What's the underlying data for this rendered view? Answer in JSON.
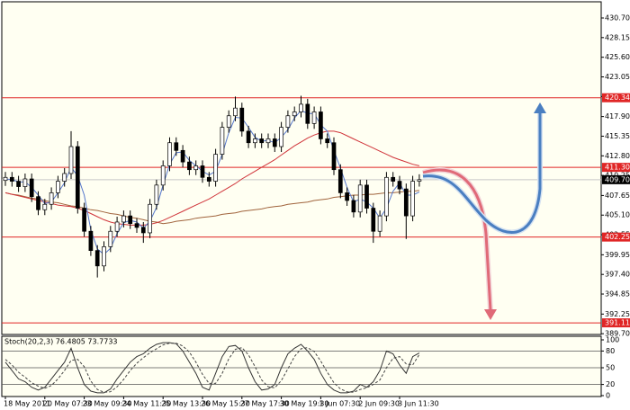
{
  "chart_data": [
    {
      "type": "candlestick",
      "categories": [
        "18 May 2011",
        null,
        null,
        null,
        null,
        null,
        "20 May 07:30",
        null,
        null,
        null,
        null,
        null,
        "23 May 09:30",
        null,
        null,
        null,
        null,
        null,
        "24 May 11:30",
        null,
        null,
        null,
        null,
        null,
        "25 May 13:30",
        null,
        null,
        null,
        null,
        null,
        "26 May 15:30",
        null,
        null,
        null,
        null,
        null,
        "27 May 17:30",
        null,
        null,
        null,
        null,
        null,
        "30 May 19:30",
        null,
        null,
        null,
        null,
        null,
        "1 Jun 07:30",
        null,
        null,
        null,
        null,
        null,
        "2 Jun 09:30",
        null,
        null,
        null,
        null,
        null,
        "3 Jun 11:30",
        null,
        null,
        null
      ],
      "open": [
        409.6,
        410.0,
        409.5,
        408.8,
        409.8,
        407.5,
        405.8,
        406.5,
        408.0,
        409.5,
        410.5,
        414.0,
        406.0,
        403.0,
        400.5,
        398.5,
        401.0,
        403.0,
        404.2,
        405.0,
        404.0,
        403.5,
        402.8,
        406.5,
        409.0,
        411.5,
        414.5,
        413.5,
        412.0,
        411.0,
        411.5,
        410.0,
        409.5,
        413.0,
        416.5,
        418.0,
        419.0,
        416.0,
        414.5,
        415.0,
        414.5,
        415.0,
        414.0,
        416.5,
        418.0,
        418.5,
        419.5,
        417.0,
        418.5,
        415.0,
        414.5,
        411.0,
        408.0,
        407.0,
        405.5,
        409.0,
        406.0,
        403.0,
        405.0,
        410.0,
        409.5,
        408.5,
        405.0,
        409.5
      ],
      "high": [
        410.7,
        410.7,
        410.2,
        410.5,
        410.5,
        408.2,
        407.2,
        408.7,
        410.2,
        411.2,
        416.0,
        414.7,
        406.7,
        403.7,
        401.2,
        401.7,
        403.7,
        404.9,
        405.7,
        405.7,
        404.7,
        404.2,
        407.2,
        409.7,
        412.2,
        415.2,
        415.2,
        414.2,
        412.7,
        412.2,
        412.2,
        410.7,
        413.7,
        417.2,
        418.7,
        420.5,
        419.7,
        416.7,
        415.7,
        415.7,
        415.7,
        415.7,
        417.2,
        418.7,
        419.2,
        420.6,
        420.2,
        419.2,
        419.2,
        415.7,
        415.2,
        411.7,
        408.7,
        407.7,
        409.7,
        409.7,
        406.7,
        405.7,
        410.7,
        410.7,
        410.2,
        409.2,
        410.2,
        410.4
      ],
      "low": [
        408.9,
        408.8,
        408.1,
        408.1,
        406.8,
        405.1,
        405.1,
        405.8,
        407.3,
        408.8,
        409.8,
        405.3,
        402.3,
        399.8,
        397.0,
        397.8,
        400.3,
        402.3,
        403.5,
        403.3,
        402.8,
        401.5,
        402.1,
        405.8,
        408.3,
        410.8,
        412.8,
        411.3,
        410.3,
        410.3,
        409.3,
        408.8,
        408.8,
        412.3,
        415.8,
        417.3,
        415.3,
        413.8,
        413.8,
        413.8,
        413.8,
        413.3,
        413.3,
        415.8,
        417.3,
        417.8,
        416.3,
        416.3,
        414.3,
        413.8,
        410.3,
        407.3,
        406.3,
        404.8,
        404.8,
        405.3,
        401.5,
        402.3,
        404.3,
        408.8,
        407.8,
        402.0,
        404.3,
        408.8
      ],
      "close": [
        410.0,
        409.5,
        408.8,
        409.8,
        407.5,
        405.8,
        406.5,
        408.0,
        409.5,
        410.5,
        414.0,
        406.0,
        403.0,
        400.5,
        398.5,
        401.0,
        403.0,
        404.2,
        405.0,
        404.0,
        403.5,
        402.8,
        406.5,
        409.0,
        411.5,
        414.5,
        413.5,
        412.0,
        411.0,
        411.5,
        410.0,
        409.5,
        413.0,
        416.5,
        418.0,
        419.0,
        416.0,
        414.5,
        415.0,
        414.5,
        415.0,
        414.0,
        416.5,
        418.0,
        418.5,
        419.5,
        417.0,
        418.5,
        415.0,
        414.5,
        411.0,
        408.0,
        407.0,
        405.5,
        409.0,
        406.0,
        403.0,
        405.0,
        410.0,
        409.5,
        408.5,
        405.0,
        409.5,
        409.7
      ],
      "up_color": "#ffffff",
      "down_color": "#000000",
      "series": [
        {
          "color": "#a0633c",
          "values": [
            408.0,
            407.8,
            407.7,
            407.5,
            407.3,
            407.2,
            407.0,
            406.8,
            406.7,
            406.5,
            406.3,
            406.2,
            406.0,
            405.8,
            405.7,
            405.5,
            405.3,
            405.2,
            405.0,
            404.8,
            404.7,
            404.5,
            404.3,
            404.2,
            404.0,
            404.1,
            404.3,
            404.4,
            404.5,
            404.7,
            404.8,
            404.9,
            405.0,
            405.2,
            405.3,
            405.4,
            405.6,
            405.7,
            405.8,
            405.9,
            406.1,
            406.2,
            406.3,
            406.5,
            406.6,
            406.7,
            406.8,
            407.0,
            407.1,
            407.2,
            407.4,
            407.5,
            407.6,
            407.7,
            407.7,
            407.8,
            407.8,
            407.9,
            408.0,
            408.0,
            408.1,
            408.2,
            408.2,
            408.3
          ]
        },
        {
          "color": "#d0343a",
          "values": [
            408.0,
            407.8,
            407.6,
            407.4,
            407.2,
            407.0,
            406.8,
            406.6,
            406.4,
            406.3,
            406.2,
            406.0,
            405.7,
            405.3,
            404.9,
            404.5,
            404.2,
            404.0,
            403.9,
            403.8,
            403.8,
            403.8,
            403.9,
            404.1,
            404.4,
            404.8,
            405.2,
            405.6,
            406.0,
            406.4,
            406.8,
            407.2,
            407.7,
            408.2,
            408.7,
            409.2,
            409.8,
            410.3,
            410.8,
            411.3,
            411.8,
            412.3,
            412.9,
            413.5,
            414.1,
            414.6,
            415.1,
            415.5,
            415.8,
            416.0,
            416.0,
            415.8,
            415.4,
            415.0,
            414.6,
            414.2,
            413.8,
            413.4,
            413.0,
            412.6,
            412.3,
            412.0,
            411.7,
            411.5
          ]
        },
        {
          "color": "#5577cc",
          "values": [
            409.8,
            409.7,
            409.4,
            409.4,
            408.7,
            407.7,
            406.6,
            406.8,
            408.0,
            409.3,
            411.3,
            410.2,
            407.7,
            403.2,
            400.7,
            400.0,
            400.8,
            402.7,
            404.1,
            404.4,
            404.2,
            403.4,
            404.3,
            406.1,
            409.0,
            411.7,
            413.2,
            413.3,
            412.2,
            411.5,
            410.8,
            410.3,
            410.8,
            413.0,
            415.8,
            417.8,
            417.7,
            416.5,
            415.2,
            414.7,
            414.8,
            414.5,
            415.2,
            416.2,
            417.7,
            418.7,
            418.3,
            418.3,
            416.8,
            416.0,
            413.5,
            411.2,
            408.7,
            406.8,
            407.2,
            406.8,
            406.0,
            404.7,
            406.0,
            408.2,
            409.3,
            407.7,
            407.7,
            408.1
          ]
        }
      ],
      "ylim": [
        389.6,
        432.8
      ],
      "yticks": [
        {
          "value": 430.7,
          "label": "430.70"
        },
        {
          "value": 428.15,
          "label": "428.15"
        },
        {
          "value": 425.6,
          "label": "425.60"
        },
        {
          "value": 423.05,
          "label": "423.05"
        },
        {
          "value": 420.5,
          "label": "420.50"
        },
        {
          "value": 417.9,
          "label": "417.90"
        },
        {
          "value": 415.35,
          "label": "415.35"
        },
        {
          "value": 412.8,
          "label": "412.80"
        },
        {
          "value": 410.25,
          "label": "410.25"
        },
        {
          "value": 407.65,
          "label": "407.65"
        },
        {
          "value": 405.1,
          "label": "405.10"
        },
        {
          "value": 402.55,
          "label": "402.55"
        },
        {
          "value": 399.95,
          "label": "399.95"
        },
        {
          "value": 397.4,
          "label": "397.40"
        },
        {
          "value": 394.85,
          "label": "394.85"
        },
        {
          "value": 392.25,
          "label": "392.25"
        },
        {
          "value": 389.7,
          "label": "389.70"
        }
      ],
      "levels": [
        {
          "value": 420.34,
          "label": "420.34"
        },
        {
          "value": 411.3,
          "label": "411.30"
        },
        {
          "value": 402.25,
          "label": "402.25"
        },
        {
          "value": 391.11,
          "label": "391.11"
        }
      ],
      "level_color": "#e02626",
      "last_price": {
        "value": 409.7,
        "label": "409.70"
      }
    },
    {
      "type": "line",
      "title": "Stoch(20,2,3) 76.4805 73.7733",
      "series": [
        {
          "color": "#333333",
          "values": [
            60,
            45,
            30,
            25,
            15,
            10,
            15,
            30,
            45,
            60,
            85,
            50,
            20,
            8,
            5,
            5,
            12,
            30,
            45,
            60,
            70,
            75,
            85,
            92,
            95,
            95,
            93,
            80,
            60,
            40,
            15,
            10,
            40,
            70,
            88,
            90,
            80,
            50,
            25,
            10,
            12,
            20,
            50,
            75,
            85,
            92,
            80,
            65,
            40,
            20,
            10,
            5,
            5,
            8,
            20,
            15,
            25,
            45,
            80,
            75,
            55,
            40,
            70,
            76.4805
          ]
        },
        {
          "color": "#444444",
          "dash": true,
          "values": [
            65,
            55,
            42,
            33,
            23,
            17,
            13,
            18,
            30,
            45,
            63,
            65,
            52,
            26,
            11,
            6,
            7,
            16,
            29,
            45,
            58,
            68,
            77,
            84,
            91,
            94,
            94,
            89,
            78,
            60,
            38,
            22,
            22,
            40,
            66,
            83,
            86,
            73,
            52,
            28,
            16,
            14,
            27,
            48,
            70,
            84,
            86,
            79,
            62,
            42,
            23,
            12,
            7,
            6,
            11,
            14,
            20,
            28,
            50,
            67,
            70,
            57,
            55,
            73.7733
          ]
        }
      ],
      "ylim": [
        0,
        100
      ],
      "yticks": [
        100,
        80,
        50,
        20,
        0
      ],
      "levels": [
        80,
        50,
        20
      ]
    }
  ]
}
